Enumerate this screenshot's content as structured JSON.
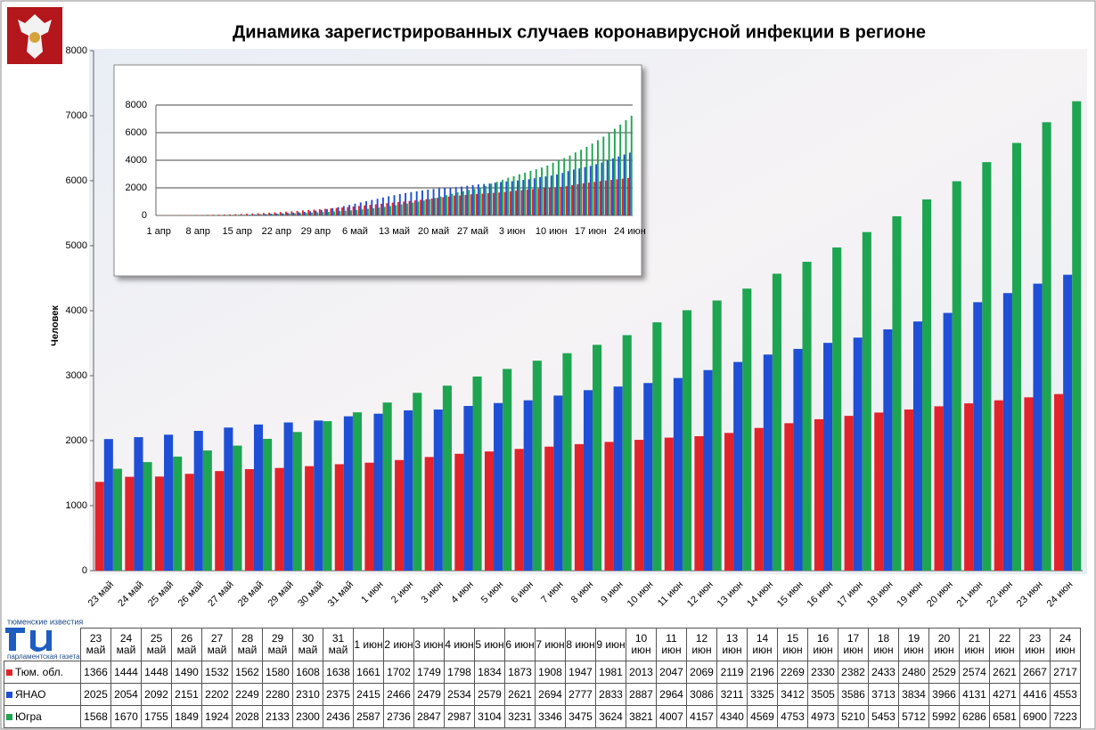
{
  "logo": {
    "top": "тюменские известия",
    "bottom": "парламентская газета"
  },
  "chart_data": [
    {
      "type": "bar",
      "title": "Динамика зарегистрированных случаев коронавирусной инфекции в регионе",
      "y_label": "Человек",
      "categories": [
        "23 май",
        "24 май",
        "25 май",
        "26 май",
        "27 май",
        "28 май",
        "29 май",
        "30 май",
        "31 май",
        "1 июн",
        "2 июн",
        "3 июн",
        "4 июн",
        "5 июн",
        "6 июн",
        "7 июн",
        "8 июн",
        "9 июн",
        "10 июн",
        "11 июн",
        "12 июн",
        "13 июн",
        "14 июн",
        "15 июн",
        "16 июн",
        "17 июн",
        "18 июн",
        "19 июн",
        "20 июн",
        "21 июн",
        "22 июн",
        "23 июн",
        "24 июн"
      ],
      "series": [
        {
          "name": "Тюм. обл.",
          "color": "#e3232b",
          "values": [
            1366,
            1444,
            1448,
            1490,
            1532,
            1562,
            1580,
            1608,
            1638,
            1661,
            1702,
            1749,
            1798,
            1834,
            1873,
            1908,
            1947,
            1981,
            2013,
            2047,
            2069,
            2119,
            2196,
            2269,
            2330,
            2382,
            2433,
            2480,
            2529,
            2574,
            2621,
            2667,
            2717
          ]
        },
        {
          "name": "ЯНАО",
          "color": "#1f4fd6",
          "values": [
            2025,
            2054,
            2092,
            2151,
            2202,
            2249,
            2280,
            2310,
            2375,
            2415,
            2466,
            2479,
            2534,
            2579,
            2621,
            2694,
            2777,
            2833,
            2887,
            2964,
            3086,
            3211,
            3325,
            3412,
            3505,
            3586,
            3713,
            3834,
            3966,
            4131,
            4271,
            4416,
            4553
          ]
        },
        {
          "name": "Югра",
          "color": "#1ea552",
          "values": [
            1568,
            1670,
            1755,
            1849,
            1924,
            2028,
            2133,
            2300,
            2436,
            2587,
            2736,
            2847,
            2987,
            3104,
            3231,
            3346,
            3475,
            3624,
            3821,
            4007,
            4157,
            4340,
            4569,
            4753,
            4973,
            5210,
            5453,
            5712,
            5992,
            6286,
            6581,
            6900,
            7223
          ]
        }
      ],
      "ylim": [
        0,
        8000
      ],
      "yticks": [
        0,
        1000,
        2000,
        3000,
        4000,
        5000,
        6000,
        7000,
        8000
      ],
      "grid": false
    },
    {
      "type": "bar",
      "categories": [
        "1 апр",
        null,
        null,
        null,
        null,
        null,
        null,
        "8 апр",
        null,
        null,
        null,
        null,
        null,
        null,
        "15 апр",
        null,
        null,
        null,
        null,
        null,
        null,
        "22 апр",
        null,
        null,
        null,
        null,
        null,
        null,
        "29 апр",
        null,
        null,
        null,
        null,
        null,
        null,
        "6 май",
        null,
        null,
        null,
        null,
        null,
        null,
        "13 май",
        null,
        null,
        null,
        null,
        null,
        null,
        "20 май",
        null,
        null,
        null,
        null,
        null,
        null,
        "27 май",
        null,
        null,
        null,
        null,
        null,
        null,
        "3 июн",
        null,
        null,
        null,
        null,
        null,
        null,
        "10 июн",
        null,
        null,
        null,
        null,
        null,
        null,
        "17 июн",
        null,
        null,
        null,
        null,
        null,
        null,
        "24 июн"
      ],
      "series": [
        {
          "name": "Тюм. обл.",
          "color": "#e3232b",
          "values": [
            10,
            12,
            15,
            18,
            22,
            26,
            30,
            35,
            40,
            46,
            52,
            58,
            65,
            75,
            90,
            105,
            120,
            140,
            160,
            180,
            200,
            225,
            250,
            275,
            300,
            330,
            360,
            390,
            420,
            450,
            480,
            510,
            540,
            575,
            610,
            650,
            690,
            730,
            770,
            810,
            850,
            890,
            930,
            970,
            1010,
            1050,
            1090,
            1130,
            1180,
            1230,
            1280,
            1320,
            1366,
            1444,
            1448,
            1490,
            1532,
            1562,
            1580,
            1608,
            1638,
            1661,
            1702,
            1749,
            1798,
            1834,
            1873,
            1908,
            1947,
            1981,
            2013,
            2047,
            2069,
            2119,
            2196,
            2269,
            2330,
            2382,
            2433,
            2480,
            2529,
            2574,
            2621,
            2667,
            2717
          ]
        },
        {
          "name": "ЯНАО",
          "color": "#1f4fd6",
          "values": [
            0,
            0,
            1,
            1,
            1,
            2,
            2,
            3,
            4,
            5,
            6,
            8,
            10,
            14,
            20,
            30,
            45,
            60,
            80,
            100,
            120,
            140,
            160,
            180,
            200,
            230,
            260,
            300,
            350,
            400,
            460,
            530,
            600,
            680,
            760,
            850,
            940,
            1030,
            1120,
            1210,
            1300,
            1390,
            1470,
            1550,
            1620,
            1690,
            1750,
            1810,
            1870,
            1920,
            1960,
            2000,
            2025,
            2054,
            2092,
            2151,
            2202,
            2249,
            2280,
            2310,
            2375,
            2415,
            2466,
            2479,
            2534,
            2579,
            2621,
            2694,
            2777,
            2833,
            2887,
            2964,
            3086,
            3211,
            3325,
            3412,
            3505,
            3586,
            3713,
            3834,
            3966,
            4131,
            4271,
            4416,
            4553
          ]
        },
        {
          "name": "Югра",
          "color": "#1ea552",
          "values": [
            5,
            6,
            8,
            10,
            12,
            15,
            18,
            22,
            26,
            30,
            35,
            40,
            45,
            50,
            55,
            60,
            66,
            72,
            80,
            90,
            100,
            110,
            120,
            135,
            150,
            165,
            180,
            200,
            220,
            240,
            260,
            285,
            310,
            340,
            370,
            400,
            440,
            480,
            520,
            570,
            620,
            680,
            740,
            800,
            860,
            930,
            1000,
            1080,
            1170,
            1270,
            1370,
            1470,
            1568,
            1670,
            1755,
            1849,
            1924,
            2028,
            2133,
            2300,
            2436,
            2587,
            2736,
            2847,
            2987,
            3104,
            3231,
            3346,
            3475,
            3624,
            3821,
            4007,
            4157,
            4340,
            4569,
            4753,
            4973,
            5210,
            5453,
            5712,
            5992,
            6286,
            6581,
            6900,
            7223
          ]
        }
      ],
      "ylim": [
        0,
        8000
      ],
      "yticks": [
        0,
        2000,
        4000,
        6000,
        8000
      ],
      "grid": true
    }
  ]
}
